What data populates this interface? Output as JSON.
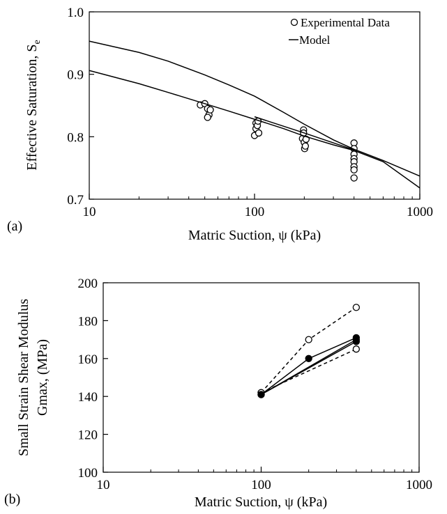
{
  "figure": {
    "panel_a_label": "(a)",
    "panel_b_label": "(b)"
  },
  "chart_data": [
    {
      "type": "scatter",
      "panel": "(a)",
      "xlabel": "Matric Suction, ψ (kPa)",
      "ylabel_main": "Effective Saturation, S",
      "ylabel_sub": "e",
      "xscale": "log",
      "xlim": [
        10,
        1000
      ],
      "ylim": [
        0.7,
        1.0
      ],
      "xticks": [
        10,
        100,
        1000
      ],
      "xtick_labels": [
        "10",
        "100",
        "1000"
      ],
      "yticks": [
        0.7,
        0.8,
        0.9,
        1.0
      ],
      "ytick_labels": [
        "0.7",
        "0.8",
        "0.9",
        "1.0"
      ],
      "legend_position": "top-right",
      "legend": [
        "Experimental Data",
        "Model"
      ],
      "series": [
        {
          "name": "Experimental Data",
          "kind": "points",
          "marker": "open-circle",
          "points": [
            [
              47,
              0.851
            ],
            [
              50,
              0.853
            ],
            [
              52,
              0.845
            ],
            [
              53,
              0.835
            ],
            [
              52,
              0.831
            ],
            [
              54,
              0.843
            ],
            [
              100,
              0.802
            ],
            [
              102,
              0.813
            ],
            [
              102,
              0.822
            ],
            [
              104,
              0.818
            ],
            [
              105,
              0.825
            ],
            [
              106,
              0.806
            ],
            [
              195,
              0.797
            ],
            [
              198,
              0.811
            ],
            [
              198,
              0.806
            ],
            [
              200,
              0.791
            ],
            [
              201,
              0.781
            ],
            [
              203,
              0.785
            ],
            [
              205,
              0.796
            ],
            [
              400,
              0.79
            ],
            [
              400,
              0.781
            ],
            [
              400,
              0.772
            ],
            [
              400,
              0.765
            ],
            [
              400,
              0.76
            ],
            [
              400,
              0.752
            ],
            [
              400,
              0.747
            ],
            [
              400,
              0.734
            ]
          ]
        },
        {
          "name": "Model",
          "kind": "line",
          "points": [
            [
              10,
              0.953
            ],
            [
              20,
              0.935
            ],
            [
              30,
              0.921
            ],
            [
              50,
              0.899
            ],
            [
              70,
              0.883
            ],
            [
              100,
              0.865
            ],
            [
              150,
              0.839
            ],
            [
              200,
              0.82
            ],
            [
              300,
              0.795
            ],
            [
              400,
              0.78
            ],
            [
              600,
              0.762
            ],
            [
              1000,
              0.737
            ]
          ]
        },
        {
          "kind": "line",
          "points": [
            [
              10,
              0.906
            ],
            [
              20,
              0.885
            ],
            [
              30,
              0.871
            ],
            [
              50,
              0.853
            ],
            [
              70,
              0.841
            ],
            [
              100,
              0.828
            ],
            [
              150,
              0.813
            ],
            [
              200,
              0.801
            ],
            [
              300,
              0.787
            ],
            [
              400,
              0.778
            ],
            [
              600,
              0.76
            ],
            [
              1000,
              0.718
            ]
          ]
        },
        {
          "kind": "line",
          "points": [
            [
              100,
              0.832
            ],
            [
              200,
              0.806
            ],
            [
              400,
              0.779
            ]
          ]
        }
      ]
    },
    {
      "type": "line",
      "panel": "(b)",
      "xlabel": "Matric Suction, ψ (kPa)",
      "ylabel_line1": "Small Strain Shear Modulus",
      "ylabel_line2": "Gmax, (MPa)",
      "xscale": "log",
      "xlim": [
        10,
        1000
      ],
      "ylim": [
        100,
        200
      ],
      "xticks": [
        10,
        100,
        1000
      ],
      "xtick_labels": [
        "10",
        "100",
        "1000"
      ],
      "yticks": [
        100,
        120,
        140,
        160,
        180,
        200
      ],
      "ytick_labels": [
        "100",
        "120",
        "140",
        "160",
        "180",
        "200"
      ],
      "series": [
        {
          "style": "dashed",
          "marker": "open-circle",
          "points": [
            [
              100,
              142
            ],
            [
              200,
              170
            ],
            [
              400,
              187
            ]
          ]
        },
        {
          "style": "dashed",
          "marker": "open-circle",
          "points": [
            [
              100,
              142
            ],
            [
              400,
              165
            ]
          ]
        },
        {
          "style": "solid",
          "marker": "filled-circle",
          "points": [
            [
              100,
              141
            ],
            [
              200,
              160
            ],
            [
              400,
              171
            ]
          ]
        },
        {
          "style": "solid",
          "marker": "filled-circle",
          "points": [
            [
              100,
              141
            ],
            [
              400,
              169
            ]
          ]
        },
        {
          "style": "solid",
          "marker": "filled-circle",
          "points": [
            [
              100,
              141
            ],
            [
              400,
              170
            ]
          ]
        }
      ]
    }
  ]
}
